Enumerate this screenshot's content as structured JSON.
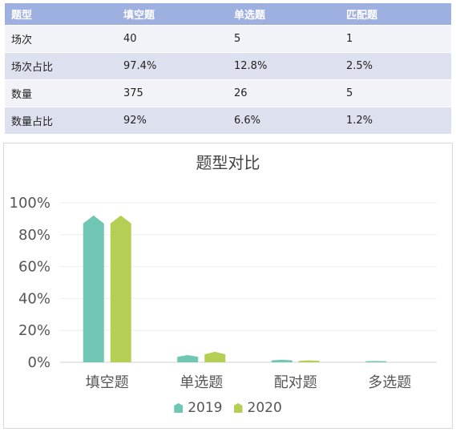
{
  "table": {
    "headers": [
      "题型",
      "填空题",
      "单选题",
      "匹配题"
    ],
    "rows": [
      [
        "场次",
        "40",
        "5",
        "1"
      ],
      [
        "场次占比",
        "97.4%",
        "12.8%",
        "2.5%"
      ],
      [
        "数量",
        "375",
        "26",
        "5"
      ],
      [
        "数量占比",
        "92%",
        "6.6%",
        "1.2%"
      ]
    ]
  },
  "chart_data": {
    "type": "bar",
    "title": "题型对比",
    "categories": [
      "填空题",
      "单选题",
      "配对题",
      "多选题"
    ],
    "series": [
      {
        "name": "2019",
        "color": "#6ec6b3",
        "values": [
          92,
          4.5,
          1.6,
          0.8
        ]
      },
      {
        "name": "2020",
        "color": "#b5cf55",
        "values": [
          92,
          6.6,
          1.2,
          0
        ]
      }
    ],
    "ylim": [
      0,
      100
    ],
    "yticks": [
      "0%",
      "20%",
      "40%",
      "60%",
      "80%",
      "100%"
    ],
    "grid": true,
    "legend_position": "bottom"
  }
}
